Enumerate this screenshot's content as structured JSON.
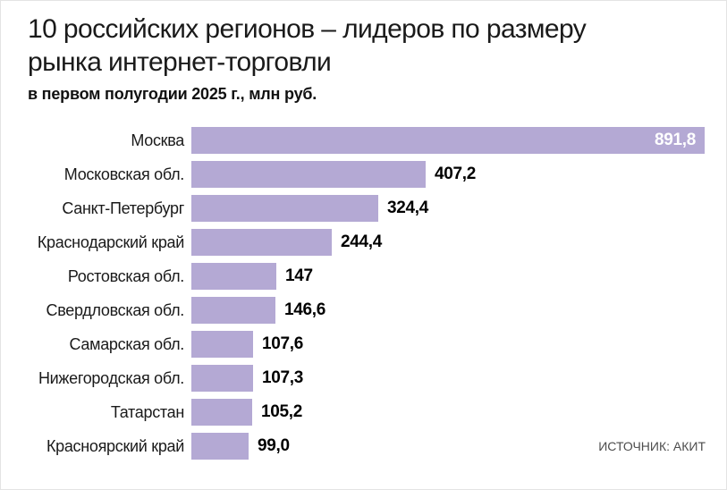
{
  "page": {
    "title_line1": "10 российских регионов – лидеров по размеру",
    "title_line2": "рынка интернет-торговли",
    "subtitle": "в первом полугодии 2025 г., млн руб.",
    "source": "ИСТОЧНИК: АКИТ"
  },
  "colors": {
    "bar": "#b4a9d4",
    "title": "#1a1a1a",
    "value_label": "#000000",
    "value_label_inside_max_bar": "#ffffff",
    "source_text": "#4d4d4d"
  },
  "chart_data": {
    "type": "bar",
    "orientation": "horizontal",
    "title": "10 российских регионов – лидеров по размеру рынка интернет-торговли",
    "subtitle": "в первом полугодии 2025 г., млн руб.",
    "unit": "млн руб.",
    "categories": [
      "Москва",
      "Московская обл.",
      "Санкт-Петербург",
      "Краснодарский край",
      "Ростовская обл.",
      "Свердловская обл.",
      "Самарская обл.",
      "Нижегородская обл.",
      "Татарстан",
      "Красноярский край"
    ],
    "values": [
      891.8,
      407.2,
      324.4,
      244.4,
      147,
      146.6,
      107.6,
      107.3,
      105.2,
      99.0
    ],
    "value_labels": [
      "891,8",
      "407,2",
      "324,4",
      "244,4",
      "147",
      "146,6",
      "107,6",
      "107,3",
      "105,2",
      "99,0"
    ],
    "xmax": 891.8,
    "grid": false,
    "legend": false,
    "source": "ИСТОЧНИК: АКИТ"
  }
}
